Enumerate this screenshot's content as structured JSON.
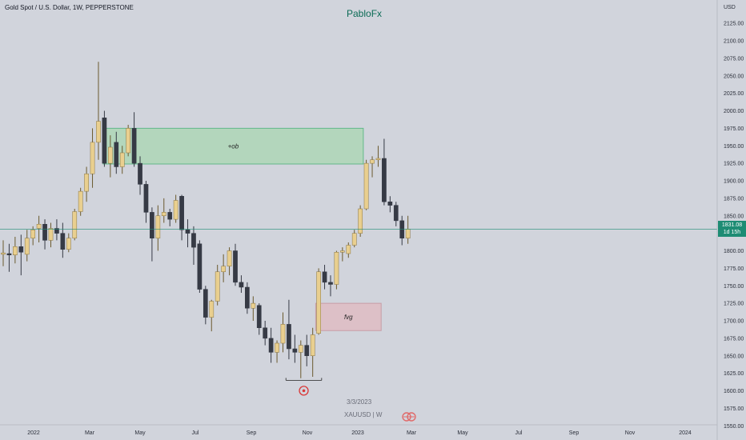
{
  "header": {
    "title": "Gold Spot / U.S. Dollar, 1W, PEPPERSTONE",
    "brand": "PabloFx"
  },
  "watermark": {
    "date": "3/3/2023",
    "symbol": "XAUUSD | W"
  },
  "price_tag": {
    "price": "1831.08",
    "countdown": "1d 15h"
  },
  "colors": {
    "background": "#d1d4dc",
    "bull": "#e9cf8f",
    "bear": "#363a45",
    "ob_zone": "#b3d6bc",
    "fvg_zone": "#ddc0c7",
    "price_line": "#1e8c74"
  },
  "chart_data": {
    "type": "candlestick",
    "title": "Gold Spot / U.S. Dollar, 1W, PEPPERSTONE",
    "x_ticks": [
      "2022",
      "Mar",
      "May",
      "Jul",
      "Sep",
      "Nov",
      "2023",
      "Mar",
      "May",
      "Jul",
      "Sep",
      "Nov",
      "2024"
    ],
    "y_unit": "USD",
    "y_ticks": [
      "1550.00",
      "1575.00",
      "1600.00",
      "1625.00",
      "1650.00",
      "1675.00",
      "1700.00",
      "1725.00",
      "1750.00",
      "1775.00",
      "1800.00",
      "1825.00",
      "1850.00",
      "1875.00",
      "1900.00",
      "1925.00",
      "1950.00",
      "1975.00",
      "2000.00",
      "2025.00",
      "2050.00",
      "2075.00",
      "2100.00",
      "2125.00"
    ],
    "ylim": [
      1540,
      2148
    ],
    "current_price": 1831.08,
    "candles": [
      {
        "o": 1795,
        "h": 1815,
        "l": 1778,
        "c": 1797
      },
      {
        "o": 1796,
        "h": 1810,
        "l": 1770,
        "c": 1794
      },
      {
        "o": 1794,
        "h": 1820,
        "l": 1782,
        "c": 1806
      },
      {
        "o": 1806,
        "h": 1823,
        "l": 1765,
        "c": 1798
      },
      {
        "o": 1795,
        "h": 1830,
        "l": 1785,
        "c": 1818
      },
      {
        "o": 1818,
        "h": 1835,
        "l": 1808,
        "c": 1830
      },
      {
        "o": 1832,
        "h": 1850,
        "l": 1812,
        "c": 1838
      },
      {
        "o": 1838,
        "h": 1845,
        "l": 1802,
        "c": 1815
      },
      {
        "o": 1815,
        "h": 1840,
        "l": 1805,
        "c": 1832
      },
      {
        "o": 1832,
        "h": 1845,
        "l": 1815,
        "c": 1825
      },
      {
        "o": 1825,
        "h": 1840,
        "l": 1790,
        "c": 1802
      },
      {
        "o": 1802,
        "h": 1825,
        "l": 1798,
        "c": 1818
      },
      {
        "o": 1818,
        "h": 1860,
        "l": 1815,
        "c": 1856
      },
      {
        "o": 1856,
        "h": 1890,
        "l": 1850,
        "c": 1885
      },
      {
        "o": 1885,
        "h": 1920,
        "l": 1870,
        "c": 1910
      },
      {
        "o": 1910,
        "h": 1975,
        "l": 1890,
        "c": 1955
      },
      {
        "o": 1955,
        "h": 2070,
        "l": 1930,
        "c": 1985
      },
      {
        "o": 1990,
        "h": 2000,
        "l": 1920,
        "c": 1925
      },
      {
        "o": 1925,
        "h": 1965,
        "l": 1905,
        "c": 1948
      },
      {
        "o": 1955,
        "h": 1970,
        "l": 1910,
        "c": 1920
      },
      {
        "o": 1920,
        "h": 1950,
        "l": 1910,
        "c": 1940
      },
      {
        "o": 1940,
        "h": 1980,
        "l": 1935,
        "c": 1975
      },
      {
        "o": 1975,
        "h": 1998,
        "l": 1920,
        "c": 1925
      },
      {
        "o": 1925,
        "h": 1935,
        "l": 1880,
        "c": 1895
      },
      {
        "o": 1895,
        "h": 1900,
        "l": 1840,
        "c": 1855
      },
      {
        "o": 1855,
        "h": 1862,
        "l": 1785,
        "c": 1818
      },
      {
        "o": 1818,
        "h": 1865,
        "l": 1800,
        "c": 1850
      },
      {
        "o": 1850,
        "h": 1875,
        "l": 1840,
        "c": 1855
      },
      {
        "o": 1855,
        "h": 1860,
        "l": 1835,
        "c": 1845
      },
      {
        "o": 1845,
        "h": 1880,
        "l": 1840,
        "c": 1872
      },
      {
        "o": 1878,
        "h": 1880,
        "l": 1815,
        "c": 1830
      },
      {
        "o": 1830,
        "h": 1845,
        "l": 1805,
        "c": 1825
      },
      {
        "o": 1825,
        "h": 1835,
        "l": 1780,
        "c": 1805
      },
      {
        "o": 1810,
        "h": 1815,
        "l": 1740,
        "c": 1745
      },
      {
        "o": 1745,
        "h": 1750,
        "l": 1695,
        "c": 1705
      },
      {
        "o": 1705,
        "h": 1730,
        "l": 1685,
        "c": 1728
      },
      {
        "o": 1728,
        "h": 1780,
        "l": 1722,
        "c": 1770
      },
      {
        "o": 1770,
        "h": 1795,
        "l": 1755,
        "c": 1778
      },
      {
        "o": 1778,
        "h": 1805,
        "l": 1765,
        "c": 1800
      },
      {
        "o": 1800,
        "h": 1810,
        "l": 1750,
        "c": 1755
      },
      {
        "o": 1755,
        "h": 1765,
        "l": 1740,
        "c": 1748
      },
      {
        "o": 1748,
        "h": 1755,
        "l": 1710,
        "c": 1718
      },
      {
        "o": 1718,
        "h": 1735,
        "l": 1700,
        "c": 1725
      },
      {
        "o": 1722,
        "h": 1725,
        "l": 1680,
        "c": 1690
      },
      {
        "o": 1690,
        "h": 1700,
        "l": 1665,
        "c": 1675
      },
      {
        "o": 1675,
        "h": 1690,
        "l": 1640,
        "c": 1655
      },
      {
        "o": 1655,
        "h": 1672,
        "l": 1640,
        "c": 1668
      },
      {
        "o": 1668,
        "h": 1712,
        "l": 1655,
        "c": 1695
      },
      {
        "o": 1695,
        "h": 1730,
        "l": 1645,
        "c": 1660
      },
      {
        "o": 1660,
        "h": 1680,
        "l": 1640,
        "c": 1655
      },
      {
        "o": 1655,
        "h": 1672,
        "l": 1618,
        "c": 1665
      },
      {
        "o": 1665,
        "h": 1680,
        "l": 1635,
        "c": 1650
      },
      {
        "o": 1650,
        "h": 1690,
        "l": 1620,
        "c": 1680
      },
      {
        "o": 1682,
        "h": 1775,
        "l": 1680,
        "c": 1770
      },
      {
        "o": 1770,
        "h": 1780,
        "l": 1745,
        "c": 1755
      },
      {
        "o": 1755,
        "h": 1765,
        "l": 1735,
        "c": 1752
      },
      {
        "o": 1752,
        "h": 1800,
        "l": 1745,
        "c": 1798
      },
      {
        "o": 1798,
        "h": 1805,
        "l": 1785,
        "c": 1800
      },
      {
        "o": 1796,
        "h": 1812,
        "l": 1790,
        "c": 1808
      },
      {
        "o": 1808,
        "h": 1830,
        "l": 1805,
        "c": 1825
      },
      {
        "o": 1825,
        "h": 1865,
        "l": 1820,
        "c": 1860
      },
      {
        "o": 1860,
        "h": 1930,
        "l": 1858,
        "c": 1925
      },
      {
        "o": 1925,
        "h": 1935,
        "l": 1905,
        "c": 1930
      },
      {
        "o": 1930,
        "h": 1950,
        "l": 1920,
        "c": 1932
      },
      {
        "o": 1932,
        "h": 1960,
        "l": 1865,
        "c": 1870
      },
      {
        "o": 1870,
        "h": 1878,
        "l": 1855,
        "c": 1865
      },
      {
        "o": 1865,
        "h": 1870,
        "l": 1835,
        "c": 1843
      },
      {
        "o": 1843,
        "h": 1850,
        "l": 1808,
        "c": 1818
      },
      {
        "o": 1818,
        "h": 1850,
        "l": 1810,
        "c": 1831
      }
    ],
    "zones": [
      {
        "label": "+ob",
        "start_index": 16.8,
        "end_index": 60.5,
        "y_low": 1924,
        "y_high": 1975,
        "color": "#b3d6bc",
        "stroke": "#62b88a"
      },
      {
        "label": "fvg",
        "start_index": 52.5,
        "end_index": 63.5,
        "y_low": 1686,
        "y_high": 1725,
        "color": "#ddc0c7",
        "stroke": "#c79ca6"
      }
    ],
    "low_bracket": {
      "start_index": 47.5,
      "end_index": 53.5,
      "y": 1615
    }
  }
}
